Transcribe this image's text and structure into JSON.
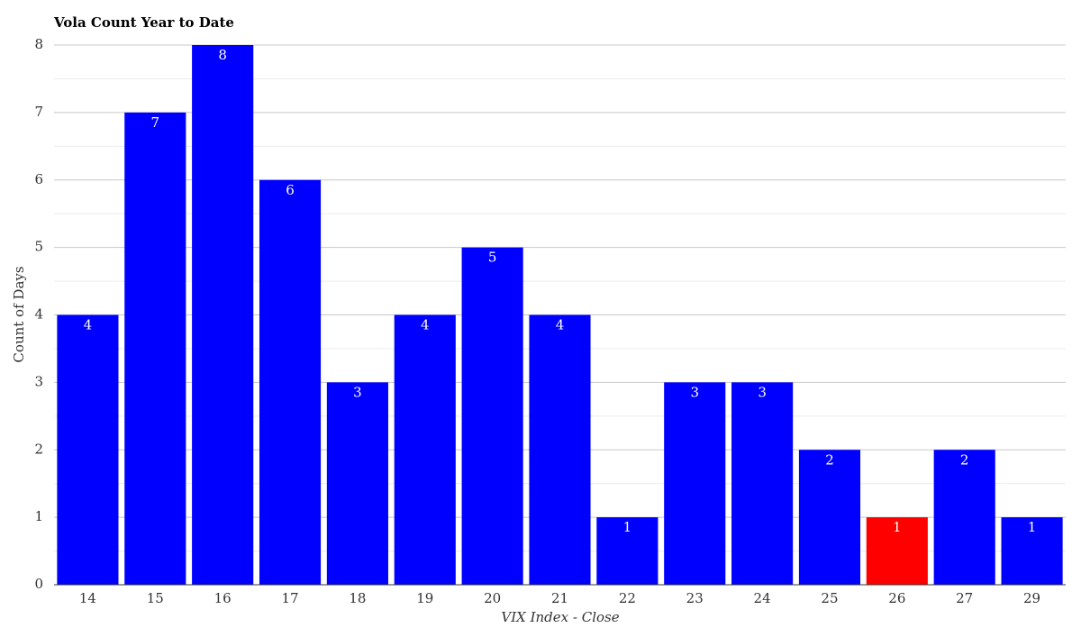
{
  "chart_data": {
    "type": "bar",
    "title": "Vola Count Year to Date",
    "x_label": "VIX Index - Close",
    "y_label": "Count of Days",
    "categories": [
      "14",
      "15",
      "16",
      "17",
      "18",
      "19",
      "20",
      "21",
      "22",
      "23",
      "24",
      "25",
      "26",
      "27",
      "29"
    ],
    "values": [
      4,
      7,
      8,
      6,
      3,
      4,
      5,
      4,
      1,
      3,
      3,
      2,
      1,
      2,
      1
    ],
    "colors": [
      "#0000ff",
      "#0000ff",
      "#0000ff",
      "#0000ff",
      "#0000ff",
      "#0000ff",
      "#0000ff",
      "#0000ff",
      "#0000ff",
      "#0000ff",
      "#0000ff",
      "#0000ff",
      "#ff0000",
      "#0000ff",
      "#0000ff"
    ],
    "ylim": [
      0,
      8
    ],
    "yticks": [
      0,
      1,
      2,
      3,
      4,
      5,
      6,
      7,
      8
    ],
    "yminorticks": [
      0.5,
      1.5,
      2.5,
      3.5,
      4.5,
      5.5,
      6.5,
      7.5
    ],
    "grid": true
  }
}
